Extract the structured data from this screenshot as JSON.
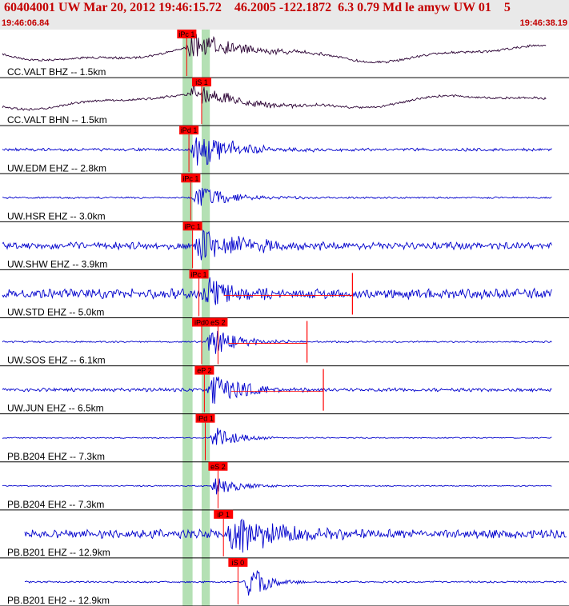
{
  "header": {
    "title": "60404001 UW Mar 20, 2012 19:46:15.72    46.2005 -122.1872  6.3 0.79 Md le amyw UW 01    5",
    "start_time": "19:46:06.84",
    "end_time": "19:46:38.19"
  },
  "colors": {
    "header_bg": "#e9e9e9",
    "header_text": "#c40000",
    "trace_broadband": "#2a0033",
    "trace_shortperiod": "#0000cc",
    "pick_flag": "#ff0000",
    "pick_line": "#ff0000",
    "window_band": "#b4e0b4",
    "separator": "#000000"
  },
  "chart_data": {
    "type": "line",
    "title": "60404001 UW Mar 20, 2012 19:46:15.72    46.2005 -122.1872  6.3 0.79 Md le amyw UW 01    5",
    "x_axis": {
      "start": "19:46:06.84",
      "end": "19:46:38.19",
      "unit": "time"
    },
    "windows": [
      {
        "start_s": 10.05,
        "end_s": 10.6
      },
      {
        "start_s": 11.1,
        "end_s": 11.55
      }
    ],
    "channels": [
      {
        "label": "CC.VALT BHZ -- 1.5km",
        "kind": "broadband",
        "pick": "iPc 1",
        "pick_s": 10.28,
        "onset_s": 10.15,
        "amplitude": 0.55,
        "duration_s": 8.0,
        "noise": 0.04,
        "drift": 0.45
      },
      {
        "label": "CC.VALT BHN -- 1.5km",
        "kind": "broadband",
        "pick": "iS 1",
        "pick_s": 11.1,
        "onset_s": 10.3,
        "amplitude": 0.5,
        "duration_s": 7.5,
        "noise": 0.04,
        "drift": 0.4
      },
      {
        "label": "UW.EDM EHZ -- 2.8km",
        "kind": "short",
        "pick": "iPd 1",
        "pick_s": 10.4,
        "onset_s": 10.5,
        "amplitude": 0.85,
        "duration_s": 6.5,
        "noise": 0.05,
        "drift": 0
      },
      {
        "label": "UW.HSR EHZ -- 3.0km",
        "kind": "short",
        "pick": "iPc 1",
        "pick_s": 10.5,
        "onset_s": 10.55,
        "amplitude": 0.55,
        "duration_s": 5.5,
        "noise": 0.03,
        "drift": 0
      },
      {
        "label": "UW.SHW EHZ -- 3.9km",
        "kind": "short",
        "pick": "iPc 1",
        "pick_s": 10.6,
        "onset_s": 10.7,
        "amplitude": 0.85,
        "duration_s": 7.0,
        "noise": 0.12,
        "drift": 0
      },
      {
        "label": "UW.STD EHZ -- 5.0km",
        "kind": "short",
        "pick": "iPc 1",
        "pick_s": 10.95,
        "onset_s": 11.0,
        "amplitude": 0.8,
        "duration_s": 5.0,
        "noise": 0.18,
        "drift": 0,
        "coda_pick_s": 19.4
      },
      {
        "label": "UW.SOS EHZ -- 6.1km",
        "kind": "short",
        "pick": "iPd0",
        "pick_s": 11.1,
        "onset_s": 11.25,
        "amplitude": 0.8,
        "duration_s": 4.5,
        "noise": 0.03,
        "drift": 0,
        "second_pick": "eS 2",
        "second_pick_s": 12.0,
        "coda_pick_s": 16.9
      },
      {
        "label": "UW.JUN EHZ -- 6.5km",
        "kind": "short",
        "pick": "eP 2",
        "pick_s": 11.25,
        "onset_s": 11.4,
        "amplitude": 0.75,
        "duration_s": 5.0,
        "noise": 0.06,
        "drift": 0,
        "coda_pick_s": 17.8
      },
      {
        "label": "PB.B204 EHZ -- 7.3km",
        "kind": "short",
        "pick": "iPd 1",
        "pick_s": 11.3,
        "onset_s": 11.5,
        "amplitude": 0.6,
        "duration_s": 3.5,
        "noise": 0.02,
        "drift": 0
      },
      {
        "label": "PB.B204 EH2 -- 7.3km",
        "kind": "short",
        "pick": "eS 2",
        "pick_s": 12.0,
        "onset_s": 11.6,
        "amplitude": 0.55,
        "duration_s": 3.5,
        "noise": 0.02,
        "drift": 0
      },
      {
        "label": "PB.B201 EHZ -- 12.9km",
        "kind": "short",
        "pick": "iP 1",
        "pick_s": 12.3,
        "onset_s": 12.4,
        "amplitude": 0.9,
        "duration_s": 8.0,
        "noise": 0.15,
        "drift": 0
      },
      {
        "label": "PB.B201 EH2 -- 12.9km",
        "kind": "short",
        "pick": "iS 0",
        "pick_s": 13.1,
        "onset_s": 13.4,
        "amplitude": 0.95,
        "duration_s": 3.0,
        "noise": 0.03,
        "drift": 0
      }
    ]
  }
}
